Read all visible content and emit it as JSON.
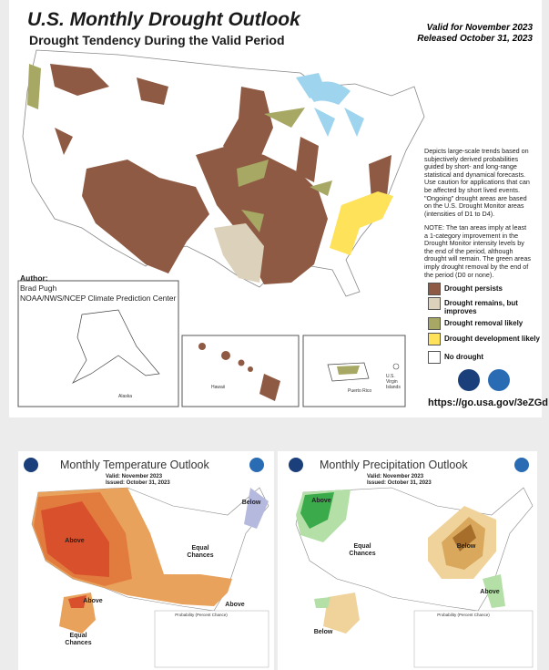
{
  "drought": {
    "title": "U.S. Monthly Drought Outlook",
    "subtitle": "Drought Tendency During the Valid Period",
    "valid": "Valid for November 2023",
    "released": "Released October 31, 2023",
    "description": "Depicts large-scale trends based on subjectively derived probabilities guided by short- and long-range statistical and dynamical forecasts. Use caution for applications that can be affected by short lived events. \"Ongoing\" drought areas are based on the U.S. Drought Monitor areas (intensities of D1 to D4).",
    "note": "NOTE: The tan areas imply at least a 1-category improvement in the Drought Monitor intensity levels by the end of the period, although drought will remain. The green areas imply drought removal by the end of the period (D0 or none).",
    "author": {
      "label": "Author:",
      "name": "Brad Pugh",
      "org": "NOAA/NWS/NCEP Climate Prediction Center"
    },
    "legend": [
      "Drought persists",
      "Drought remains, but improves",
      "Drought removal likely",
      "Drought development likely",
      "No drought"
    ],
    "insets": {
      "alaska": "Alaska",
      "hawaii": "Hawaii",
      "puerto_rico": "Puerto Rico",
      "virgin_islands": "U.S. Virgin Islands"
    },
    "url": "https://go.usa.gov/3eZGd"
  },
  "temperature": {
    "title": "Monthly Temperature Outlook",
    "valid": "Valid:  November 2023",
    "issued": "Issued:  October 31, 2023",
    "labels": [
      "Above",
      "Below",
      "Equal Chances",
      "Above",
      "Above",
      "Equal Chances"
    ],
    "legend_title": "Probability (Percent Chance)"
  },
  "precipitation": {
    "title": "Monthly Precipitation Outlook",
    "valid": "Valid:  November 2023",
    "issued": "Issued:  October 31, 2023",
    "labels": [
      "Above",
      "Equal Chances",
      "Below",
      "Above",
      "Below"
    ],
    "legend_title": "Probability (Percent Chance)"
  }
}
